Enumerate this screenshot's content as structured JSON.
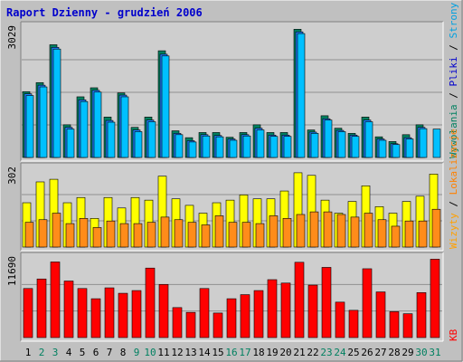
{
  "title": "Raport Dzienny -  grudzień 2006",
  "colors": {
    "background": "#C0C0C0",
    "panel": "#CECECE",
    "grid": "#909090",
    "title": "#0000CC",
    "weekday_day": "#000000",
    "weekend_day": "#008060",
    "visits_legend": "#008060",
    "pages": "#00C0FF",
    "pages_legend": "#00A0E0",
    "files": "#1E7FFF",
    "files_legend": "#0000CC",
    "hits": "#008060",
    "sites": "#FF8C1A",
    "sites_legend": "#FF8000",
    "visits": "#FFFF00",
    "visits_mid_legend": "#FFA000",
    "kb": "#FF0000",
    "kb_legend": "#FF0000"
  },
  "legend_right": {
    "top": [
      "Wywołania",
      "Pliki",
      "Strony"
    ],
    "mid": [
      "Wizyty",
      "Lokalizacje"
    ],
    "bot": [
      "KB"
    ],
    "separator": " / "
  },
  "chart_data": {
    "type": "bar",
    "title": "Raport Dzienny -  grudzień 2006",
    "categories": [
      "1",
      "2",
      "3",
      "4",
      "5",
      "6",
      "7",
      "8",
      "9",
      "10",
      "11",
      "12",
      "13",
      "14",
      "15",
      "16",
      "17",
      "18",
      "19",
      "20",
      "21",
      "22",
      "23",
      "24",
      "25",
      "26",
      "27",
      "28",
      "29",
      "30",
      "31"
    ],
    "weekend_days": [
      "2",
      "3",
      "9",
      "10",
      "16",
      "17",
      "23",
      "24",
      "30",
      "31"
    ],
    "panels": [
      {
        "id": "top",
        "ymax_label": "3029",
        "ymax": 3029,
        "series": [
          {
            "name": "Wywołania",
            "values": [
              1530,
              1740,
              2620,
              760,
              1410,
              1620,
              940,
              1500,
              700,
              940,
              2480,
              620,
              460,
              580,
              580,
              470,
              580,
              760,
              580,
              580,
              2980,
              640,
              970,
              680,
              560,
              940,
              480,
              370,
              530,
              760,
              0
            ]
          },
          {
            "name": "Pliki",
            "values": [
              1480,
              1680,
              2560,
              700,
              1340,
              1560,
              860,
              1450,
              640,
              870,
              2400,
              560,
              390,
              530,
              510,
              430,
              530,
              680,
              520,
              520,
              2920,
              590,
              900,
              630,
              520,
              870,
              430,
              320,
              460,
              700,
              0
            ]
          },
          {
            "name": "Strony",
            "values": [
              1440,
              1640,
              2520,
              660,
              1300,
              1520,
              820,
              1410,
              600,
              830,
              2360,
              530,
              360,
              500,
              480,
              400,
              500,
              640,
              490,
              490,
              2880,
              560,
              870,
              600,
              490,
              830,
              400,
              300,
              430,
              670,
              660
            ]
          }
        ]
      },
      {
        "id": "mid",
        "ymax_label": "302",
        "ymax": 302,
        "series": [
          {
            "name": "Wizyty",
            "values": [
              170,
              250,
              260,
              170,
              190,
              110,
              190,
              150,
              190,
              180,
              272,
              185,
              160,
              130,
              170,
              180,
              200,
              185,
              185,
              215,
              285,
              275,
              180,
              130,
              175,
              235,
              155,
              130,
              175,
              195,
              280
            ]
          },
          {
            "name": "Lokalizacje",
            "values": [
              95,
              105,
              130,
              90,
              110,
              75,
              100,
              90,
              90,
              95,
              115,
              105,
              95,
              85,
              120,
              95,
              95,
              90,
              120,
              110,
              125,
              135,
              135,
              125,
              115,
              130,
              105,
              80,
              100,
              100,
              145
            ]
          }
        ]
      },
      {
        "id": "bot",
        "ymax_label": "11690",
        "ymax": 11690,
        "series": [
          {
            "name": "KB",
            "values": [
              7200,
              8600,
              11100,
              8300,
              7200,
              5700,
              7300,
              6500,
              6900,
              10200,
              7800,
              4400,
              3700,
              7200,
              3600,
              5700,
              6300,
              6900,
              8500,
              8000,
              11050,
              7700,
              10300,
              5200,
              4000,
              10100,
              6700,
              3800,
              3500,
              6600,
              11500
            ]
          }
        ]
      }
    ],
    "grid": true
  }
}
